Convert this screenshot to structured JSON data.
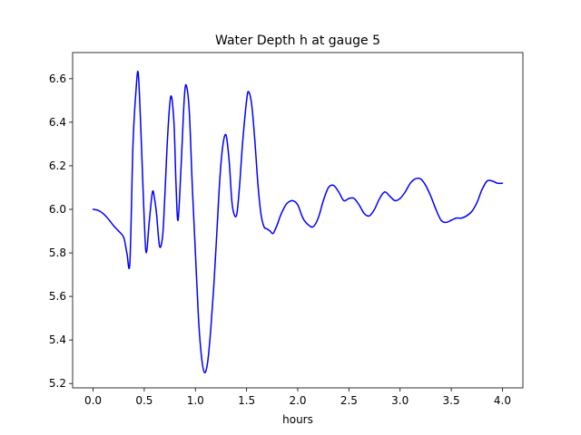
{
  "chart_data": {
    "type": "line",
    "title": "Water Depth h at gauge 5",
    "xlabel": "hours",
    "ylabel": "",
    "xlim": [
      -0.2,
      4.2
    ],
    "ylim": [
      5.18,
      6.72
    ],
    "xticks": [
      0.0,
      0.5,
      1.0,
      1.5,
      2.0,
      2.5,
      3.0,
      3.5,
      4.0
    ],
    "xtick_labels": [
      "0.0",
      "0.5",
      "1.0",
      "1.5",
      "2.0",
      "2.5",
      "3.0",
      "3.5",
      "4.0"
    ],
    "yticks": [
      5.2,
      5.4,
      5.6,
      5.8,
      6.0,
      6.2,
      6.4,
      6.6
    ],
    "ytick_labels": [
      "5.2",
      "5.4",
      "5.6",
      "5.8",
      "6.0",
      "6.2",
      "6.4",
      "6.6"
    ],
    "grid": false,
    "line_color": "#0000ff",
    "series": [
      {
        "x": [
          0.0,
          0.05,
          0.1,
          0.15,
          0.2,
          0.25,
          0.3,
          0.33,
          0.36,
          0.39,
          0.42,
          0.44,
          0.46,
          0.48,
          0.5,
          0.52,
          0.55,
          0.58,
          0.6,
          0.62,
          0.65,
          0.68,
          0.7,
          0.73,
          0.76,
          0.79,
          0.81,
          0.83,
          0.86,
          0.89,
          0.91,
          0.94,
          0.97,
          1.0,
          1.03,
          1.06,
          1.09,
          1.12,
          1.15,
          1.18,
          1.21,
          1.24,
          1.27,
          1.3,
          1.33,
          1.36,
          1.4,
          1.43,
          1.46,
          1.5,
          1.52,
          1.55,
          1.58,
          1.61,
          1.64,
          1.67,
          1.7,
          1.73,
          1.76,
          1.8,
          1.83,
          1.87,
          1.9,
          1.95,
          2.0,
          2.05,
          2.1,
          2.15,
          2.2,
          2.25,
          2.3,
          2.35,
          2.4,
          2.45,
          2.5,
          2.55,
          2.6,
          2.65,
          2.7,
          2.75,
          2.8,
          2.85,
          2.9,
          2.95,
          3.0,
          3.05,
          3.1,
          3.15,
          3.2,
          3.25,
          3.3,
          3.35,
          3.4,
          3.45,
          3.5,
          3.55,
          3.6,
          3.65,
          3.7,
          3.75,
          3.8,
          3.85,
          3.9,
          3.95,
          4.0
        ],
        "y": [
          6.0,
          5.995,
          5.98,
          5.955,
          5.925,
          5.9,
          5.87,
          5.8,
          5.76,
          6.3,
          6.55,
          6.63,
          6.45,
          6.2,
          5.95,
          5.8,
          5.95,
          6.08,
          6.05,
          5.98,
          5.83,
          5.88,
          6.05,
          6.35,
          6.52,
          6.4,
          6.12,
          5.95,
          6.2,
          6.5,
          6.57,
          6.45,
          6.1,
          5.8,
          5.5,
          5.32,
          5.25,
          5.3,
          5.45,
          5.65,
          5.9,
          6.15,
          6.3,
          6.34,
          6.22,
          6.02,
          5.97,
          6.1,
          6.3,
          6.5,
          6.54,
          6.48,
          6.32,
          6.12,
          5.98,
          5.92,
          5.91,
          5.9,
          5.89,
          5.93,
          5.97,
          6.01,
          6.03,
          6.04,
          6.02,
          5.96,
          5.93,
          5.92,
          5.96,
          6.04,
          6.1,
          6.11,
          6.08,
          6.04,
          6.05,
          6.05,
          6.02,
          5.98,
          5.97,
          6.0,
          6.05,
          6.08,
          6.06,
          6.04,
          6.05,
          6.08,
          6.12,
          6.14,
          6.14,
          6.11,
          6.06,
          6.0,
          5.95,
          5.94,
          5.95,
          5.96,
          5.96,
          5.97,
          5.99,
          6.03,
          6.09,
          6.13,
          6.13,
          6.12,
          6.12
        ]
      }
    ]
  }
}
